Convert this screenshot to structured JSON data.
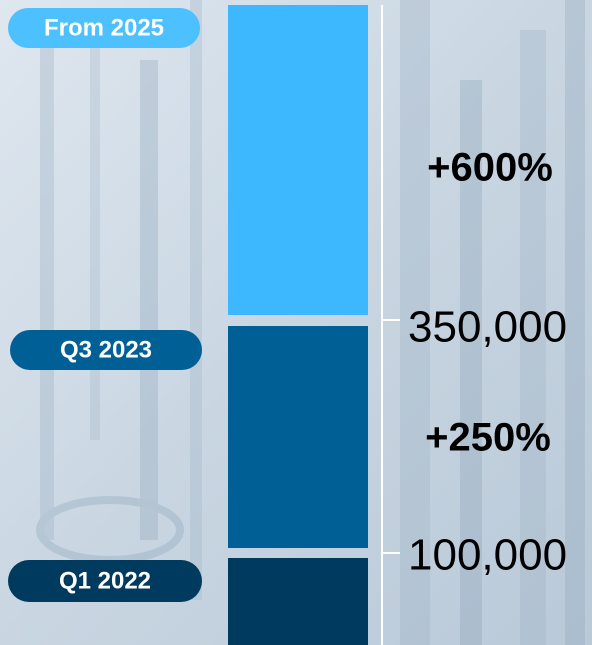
{
  "stages": [
    {
      "label": "From 2025",
      "growth": "+600%"
    },
    {
      "label": "Q3 2023",
      "growth": "+250%"
    },
    {
      "label": "Q1 2022"
    }
  ],
  "axis": {
    "ticks": [
      "350,000",
      "100,000"
    ]
  }
}
